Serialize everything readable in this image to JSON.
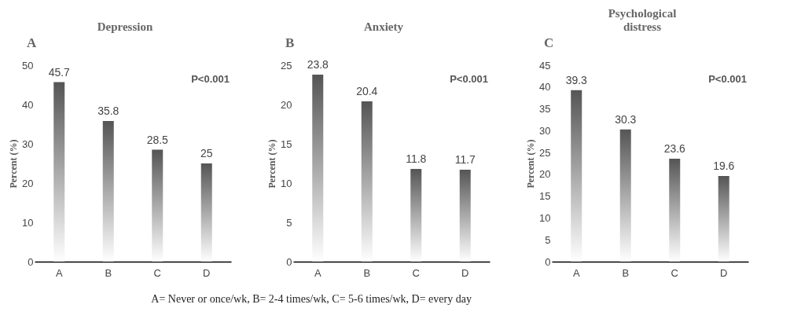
{
  "chart_data": [
    {
      "type": "bar",
      "title": "Depression",
      "ylabel": "Percent (%)",
      "categories": [
        "A",
        "B",
        "C",
        "D"
      ],
      "values": [
        45.7,
        35.8,
        28.5,
        25
      ],
      "color": "#555555",
      "ylim": [
        0,
        50
      ],
      "yticks": [
        0,
        10,
        20,
        30,
        40,
        50
      ],
      "data_labels": true,
      "grid": false,
      "annotations": [
        "A",
        "P<0.001"
      ]
    },
    {
      "type": "bar",
      "title": "Anxiety",
      "ylabel": "Percent (%)",
      "categories": [
        "A",
        "B",
        "C",
        "D"
      ],
      "values": [
        23.8,
        20.4,
        11.8,
        11.7
      ],
      "color": "#555555",
      "ylim": [
        0,
        25
      ],
      "yticks": [
        0,
        5,
        10,
        15,
        20,
        25
      ],
      "data_labels": true,
      "grid": false,
      "annotations": [
        "B",
        "P<0.001",
        "A= Never or once/wk, B= 2-4 times/wk, C= 5-6 times/wk, D= every day"
      ]
    },
    {
      "type": "bar",
      "title": "Psychological distress",
      "ylabel": "Percent (%)",
      "categories": [
        "A",
        "B",
        "C",
        "D"
      ],
      "values": [
        39.3,
        30.3,
        23.6,
        19.6
      ],
      "color": "#555555",
      "ylim": [
        0,
        45
      ],
      "yticks": [
        0,
        5,
        10,
        15,
        20,
        25,
        30,
        35,
        40,
        45
      ],
      "data_labels": true,
      "grid": false,
      "annotations": [
        "C",
        "P<0.001"
      ]
    }
  ]
}
